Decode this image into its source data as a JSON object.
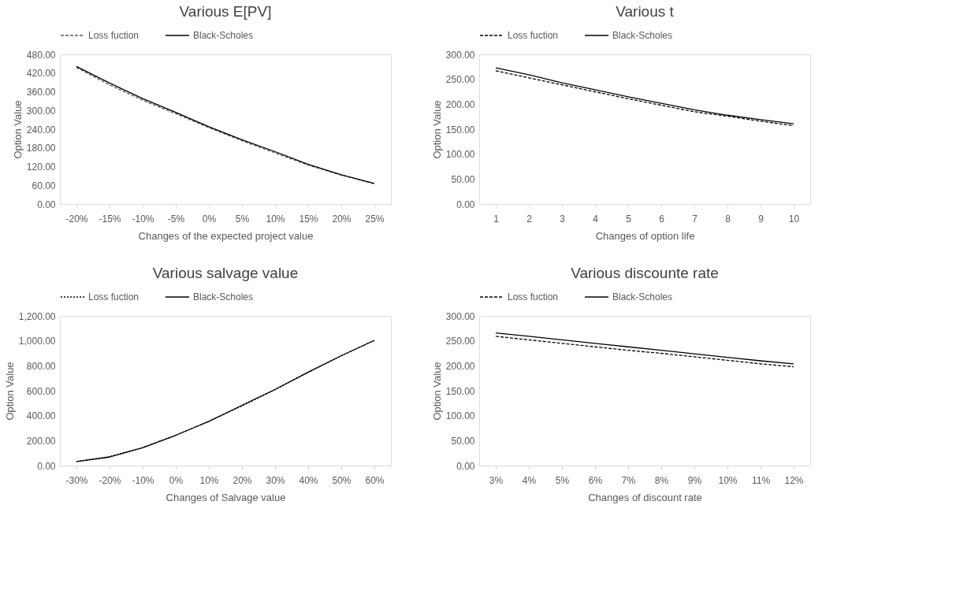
{
  "chart_data": [
    {
      "type": "line",
      "title": "Various E[PV]",
      "xlabel": "Changes of the expected project value",
      "ylabel": "Option Value",
      "categories": [
        "-20%",
        "-15%",
        "-10%",
        "-5%",
        "0%",
        "5%",
        "10%",
        "15%",
        "20%",
        "25%"
      ],
      "ylim": [
        0,
        480
      ],
      "yticks": [
        {
          "value": 0,
          "label": "0.00"
        },
        {
          "value": 60,
          "label": "60.00"
        },
        {
          "value": 120,
          "label": "120.00"
        },
        {
          "value": 180,
          "label": "180.00"
        },
        {
          "value": 240,
          "label": "240.00"
        },
        {
          "value": 300,
          "label": "300.00"
        },
        {
          "value": 360,
          "label": "360.00"
        },
        {
          "value": 420,
          "label": "420.00"
        },
        {
          "value": 480,
          "label": "480.00"
        }
      ],
      "grid": false,
      "legend": "top",
      "marker": "none",
      "series": [
        {
          "name": "Loss fuction",
          "color": "#595959",
          "line_style": "dashed",
          "values": [
            438,
            382,
            333,
            290,
            245,
            203,
            164,
            125,
            93,
            65
          ]
        },
        {
          "name": "Black-Scholes",
          "color": "#000000",
          "line_style": "solid",
          "values": [
            441,
            388,
            338,
            294,
            248,
            206,
            168,
            127,
            94,
            66
          ]
        }
      ]
    },
    {
      "type": "line",
      "title": "Various t",
      "xlabel": "Changes of option life",
      "ylabel": "Option Value",
      "categories": [
        "1",
        "2",
        "3",
        "4",
        "5",
        "6",
        "7",
        "8",
        "9",
        "10"
      ],
      "ylim": [
        0,
        300
      ],
      "yticks": [
        {
          "value": 0,
          "label": "0.00"
        },
        {
          "value": 50,
          "label": "50.00"
        },
        {
          "value": 100,
          "label": "100.00"
        },
        {
          "value": 150,
          "label": "150.00"
        },
        {
          "value": 200,
          "label": "200.00"
        },
        {
          "value": 250,
          "label": "250.00"
        },
        {
          "value": 300,
          "label": "300.00"
        }
      ],
      "grid": false,
      "legend": "top",
      "marker": "none",
      "series": [
        {
          "name": "Loss fuction",
          "color": "#000000",
          "line_style": "dashed",
          "values": [
            267,
            253,
            239,
            225,
            211,
            198,
            185,
            176,
            166,
            157
          ]
        },
        {
          "name": "Black-Scholes",
          "color": "#000000",
          "line_style": "solid",
          "values": [
            273,
            259,
            243,
            229,
            215,
            202,
            189,
            178,
            169,
            161
          ]
        }
      ]
    },
    {
      "type": "line",
      "title": "Various salvage value",
      "xlabel": "Changes of Salvage value",
      "ylabel": "Option Value",
      "categories": [
        "-30%",
        "-20%",
        "-10%",
        "0%",
        "10%",
        "20%",
        "30%",
        "40%",
        "50%",
        "60%"
      ],
      "ylim": [
        0,
        1200
      ],
      "yticks": [
        {
          "value": 0,
          "label": "0.00"
        },
        {
          "value": 200,
          "label": "200.00"
        },
        {
          "value": 400,
          "label": "400.00"
        },
        {
          "value": 600,
          "label": "600.00"
        },
        {
          "value": 800,
          "label": "800.00"
        },
        {
          "value": 1000,
          "label": "1,000.00"
        },
        {
          "value": 1200,
          "label": "1,200.00"
        }
      ],
      "grid": false,
      "legend": "top",
      "marker": "none",
      "series": [
        {
          "name": "Loss fuction",
          "color": "#000000",
          "line_style": "dotted",
          "values": [
            33,
            72,
            145,
            243,
            355,
            478,
            608,
            747,
            880,
            1003
          ]
        },
        {
          "name": "Black-Scholes",
          "color": "#000000",
          "line_style": "solid",
          "values": [
            32,
            68,
            143,
            243,
            355,
            483,
            611,
            749,
            881,
            1004
          ]
        }
      ]
    },
    {
      "type": "line",
      "title": "Various discounte rate",
      "xlabel": "Changes of discount rate",
      "ylabel": "Option Value",
      "categories": [
        "3%",
        "4%",
        "5%",
        "6%",
        "7%",
        "8%",
        "9%",
        "10%",
        "11%",
        "12%"
      ],
      "ylim": [
        0,
        300
      ],
      "yticks": [
        {
          "value": 0,
          "label": "0.00"
        },
        {
          "value": 50,
          "label": "50.00"
        },
        {
          "value": 100,
          "label": "100.00"
        },
        {
          "value": 150,
          "label": "150.00"
        },
        {
          "value": 200,
          "label": "200.00"
        },
        {
          "value": 250,
          "label": "250.00"
        },
        {
          "value": 300,
          "label": "300.00"
        }
      ],
      "grid": false,
      "legend": "top",
      "marker": "none",
      "series": [
        {
          "name": "Loss fuction",
          "color": "#000000",
          "line_style": "dashed",
          "values": [
            259,
            252,
            245,
            238,
            231,
            225,
            218,
            211,
            204,
            198
          ]
        },
        {
          "name": "Black-Scholes",
          "color": "#000000",
          "line_style": "solid",
          "values": [
            266,
            259,
            252,
            245,
            238,
            231,
            224,
            217,
            210,
            204
          ]
        }
      ]
    }
  ]
}
